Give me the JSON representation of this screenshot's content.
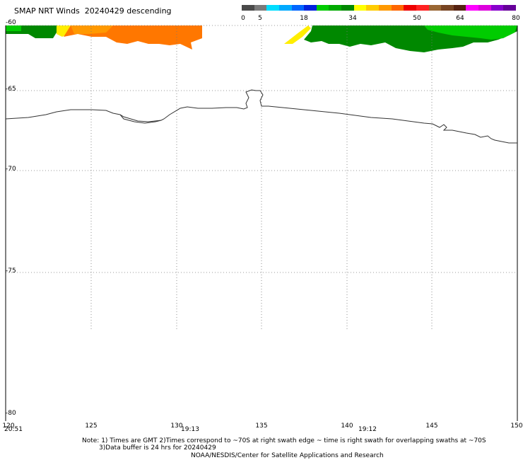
{
  "header": {
    "title": "SMAP NRT Winds  20240429 descending"
  },
  "colorbar": {
    "segments": [
      {
        "color": "#4a4a4a"
      },
      {
        "color": "#7a7a7a"
      },
      {
        "color": "#00ddff"
      },
      {
        "color": "#00aaff"
      },
      {
        "color": "#0066ff"
      },
      {
        "color": "#0022dd"
      },
      {
        "color": "#00cc00"
      },
      {
        "color": "#00aa00"
      },
      {
        "color": "#008800"
      },
      {
        "color": "#ffff00"
      },
      {
        "color": "#ffcc00"
      },
      {
        "color": "#ff9900"
      },
      {
        "color": "#ff6600"
      },
      {
        "color": "#ee0000"
      },
      {
        "color": "#ff2222"
      },
      {
        "color": "#996633"
      },
      {
        "color": "#774422"
      },
      {
        "color": "#552211"
      },
      {
        "color": "#ff00ff"
      },
      {
        "color": "#dd00dd"
      },
      {
        "color": "#8800cc"
      },
      {
        "color": "#660099"
      }
    ],
    "labels": [
      "0",
      "5",
      "18",
      "34",
      "50",
      "64",
      "80"
    ]
  },
  "map": {
    "lat_labels": [
      "-60",
      "-65",
      "-70",
      "-75",
      "-80"
    ],
    "lon_labels": [
      "120",
      "125",
      "130",
      "135",
      "140",
      "145",
      "150"
    ],
    "time_labels": [
      "20:51",
      "19:13",
      "19:12"
    ]
  },
  "footer": {
    "note_line1": "Note: 1) Times are GMT 2)Times correspond to ~70S at right swath edge ~ time is right swath for overlapping swaths at ~70S",
    "note_line2": "3)Data buffer is 24 hrs for 20240429",
    "credit": "NOAA/NESDIS/Center for Satellite Applications and Research"
  }
}
